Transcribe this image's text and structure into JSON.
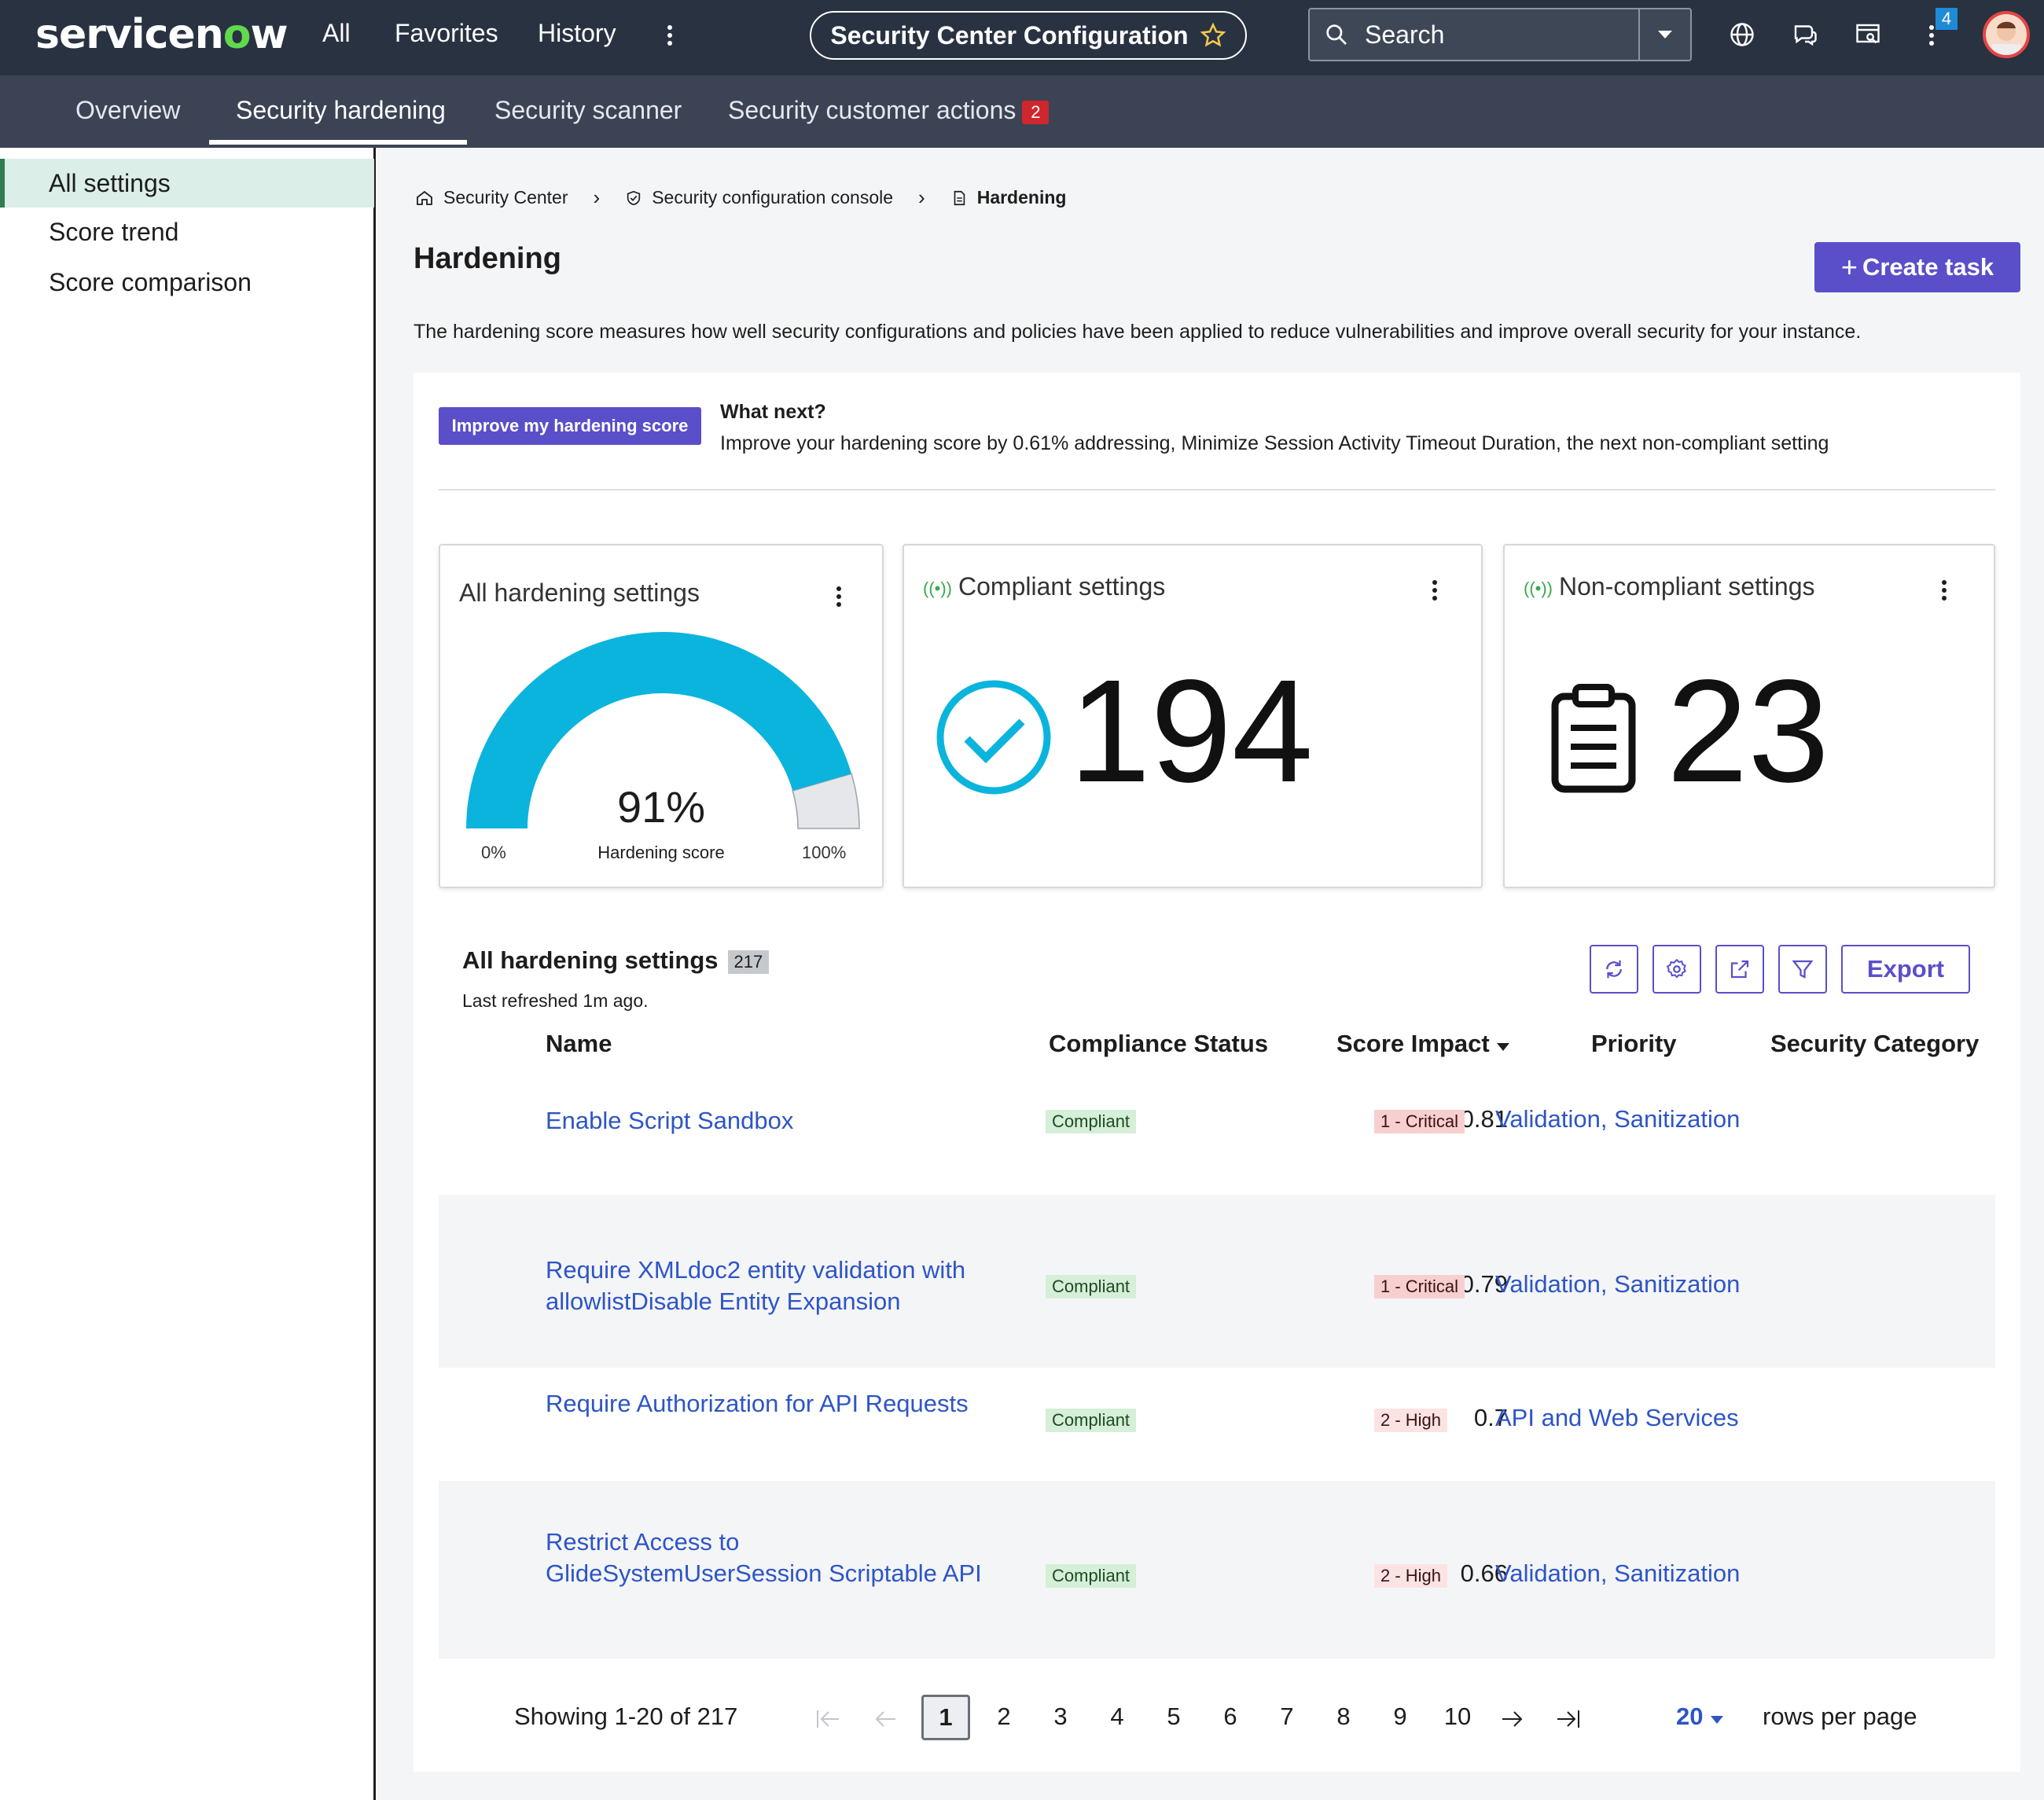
{
  "topbar": {
    "logo_text": "servicenow",
    "nav": [
      "All",
      "Favorites",
      "History"
    ],
    "title": "Security Center Configuration",
    "search_label": "Search",
    "notif_count": "4"
  },
  "subnav": {
    "tabs": [
      "Overview",
      "Security hardening",
      "Security scanner",
      "Security customer actions"
    ],
    "actions_count": "2"
  },
  "sidebar": {
    "items": [
      "All settings",
      "Score trend",
      "Score comparison"
    ]
  },
  "breadcrumb": [
    "Security Center",
    "Security configuration console",
    "Hardening"
  ],
  "page": {
    "title": "Hardening",
    "create_label": "Create task",
    "description": "The hardening score measures how well security configurations and policies have been applied to reduce vulnerabilities and improve overall security for your instance."
  },
  "whatnext": {
    "button": "Improve my hardening score",
    "heading": "What next?",
    "text": "Improve your hardening score by 0.61% addressing, Minimize Session Activity Timeout Duration, the next non-compliant setting"
  },
  "cards": {
    "gauge": {
      "title": "All hardening settings",
      "value": "91%",
      "label": "Hardening score",
      "min": "0%",
      "max": "100%",
      "fraction": 0.91,
      "color": "#0bb4dc"
    },
    "compliant": {
      "title": "Compliant settings",
      "value": "194"
    },
    "noncompliant": {
      "title": "Non-compliant settings",
      "value": "23"
    }
  },
  "list": {
    "title": "All hardening settings",
    "count": "217",
    "refreshed": "Last refreshed 1m ago.",
    "export": "Export",
    "headers": {
      "name": "Name",
      "status": "Compliance Status",
      "score": "Score Impact",
      "priority": "Priority",
      "category": "Security Category"
    },
    "rows": [
      {
        "name": "Enable Script Sandbox",
        "status": "Compliant",
        "score": "0.81",
        "priority": "1 - Critical",
        "category": "Validation, Sanitization"
      },
      {
        "name": "Require XMLdoc2 entity validation with allowlistDisable Entity Expansion",
        "status": "Compliant",
        "score": "0.79",
        "priority": "1 - Critical",
        "category": "Validation, Sanitization"
      },
      {
        "name": "Require Authorization for API Requests",
        "status": "Compliant",
        "score": "0.7",
        "priority": "2 - High",
        "category": "API and Web Services"
      },
      {
        "name": "Restrict Access to GlideSystemUserSession Scriptable API",
        "status": "Compliant",
        "score": "0.66",
        "priority": "2 - High",
        "category": "Validation, Sanitization"
      }
    ]
  },
  "pager": {
    "showing": "Showing 1-20 of 217",
    "pages": [
      "1",
      "2",
      "3",
      "4",
      "5",
      "6",
      "7",
      "8",
      "9",
      "10"
    ],
    "rows_value": "20",
    "rows_label": "rows per page"
  }
}
